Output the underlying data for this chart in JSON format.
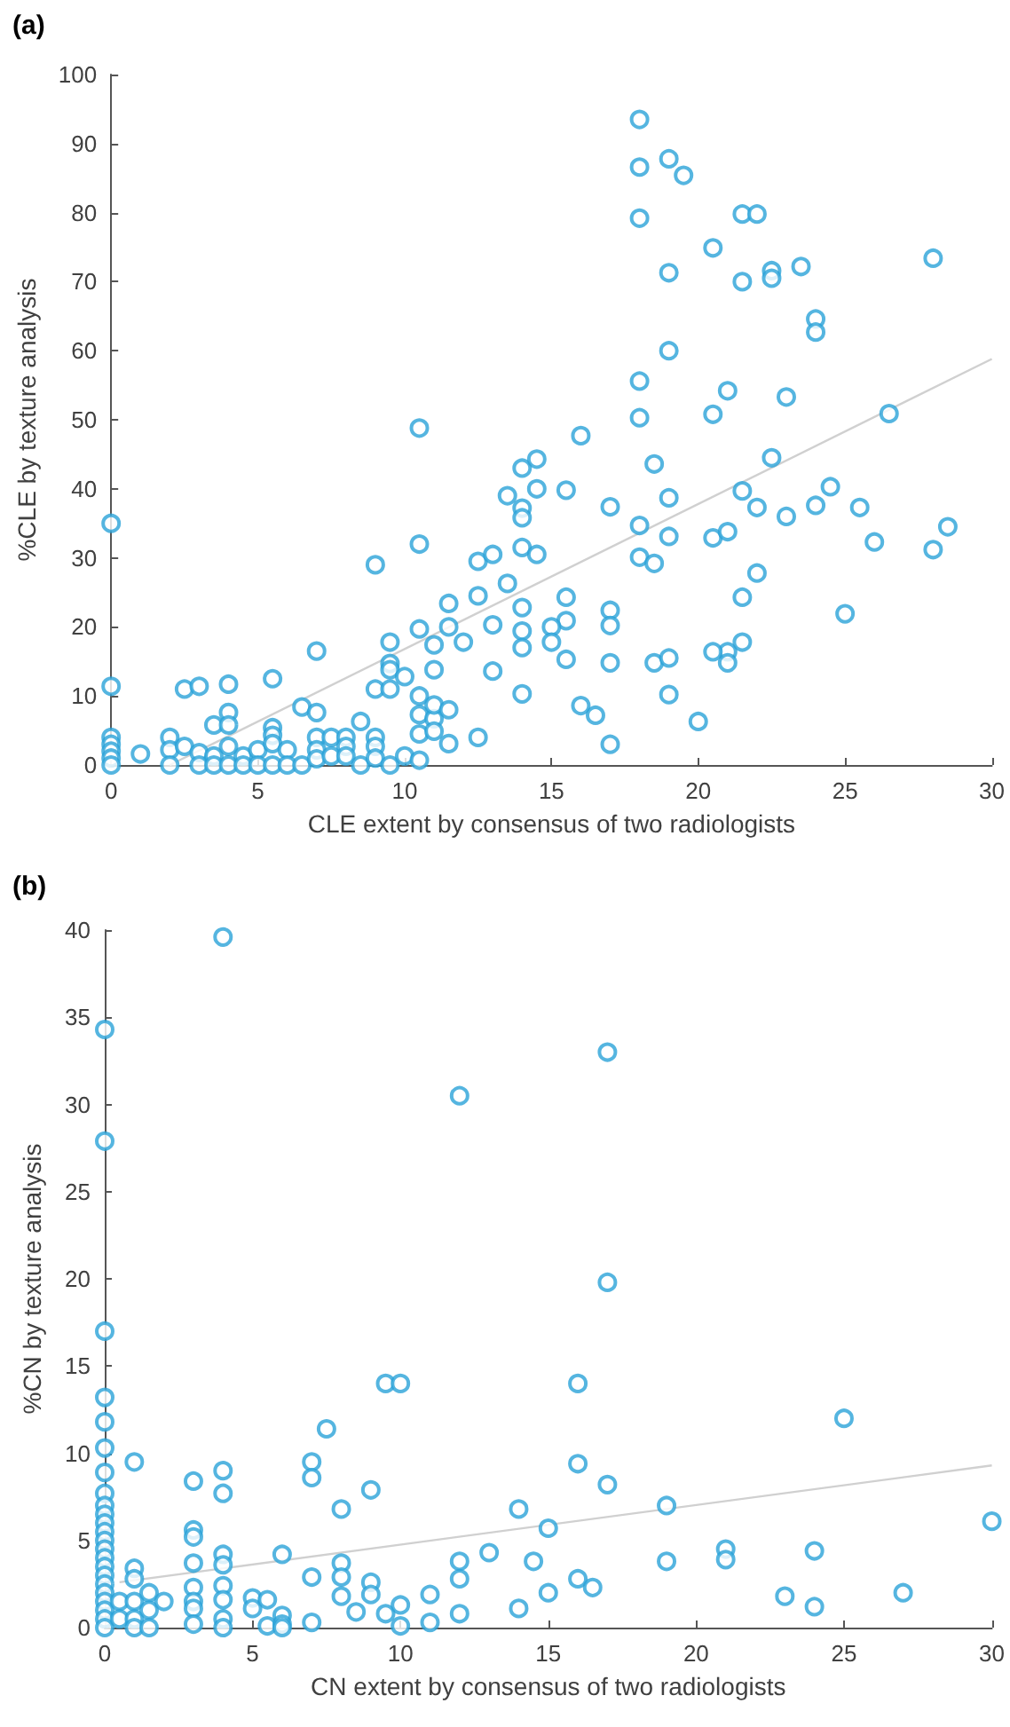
{
  "chart_data": [
    {
      "type": "scatter",
      "title": "(a)",
      "xlabel": "CLE extent by consensus of two radiologists",
      "ylabel": "%CLE by texture analysis",
      "xlim": [
        0,
        30
      ],
      "xticks": [
        0,
        5,
        10,
        15,
        20,
        25,
        30
      ],
      "ylim": [
        0,
        100
      ],
      "yticks": [
        0,
        10,
        20,
        30,
        40,
        50,
        60,
        70,
        80,
        90,
        100
      ],
      "marker": "circle",
      "series": [
        {
          "color": "#2aa3d8",
          "x": [
            0,
            0,
            0,
            0,
            0,
            0,
            0,
            1,
            2,
            2,
            2,
            2.5,
            3,
            2.5,
            3,
            3,
            3.5,
            3.5,
            3.5,
            4,
            4,
            4,
            4,
            4,
            4.5,
            4.5,
            5,
            5,
            5.5,
            5.5,
            5.5,
            5.5,
            5.5,
            6,
            6,
            6.5,
            7,
            7,
            6.5,
            7,
            7,
            7,
            7.5,
            7.5,
            8,
            8,
            8,
            8.5,
            8.5,
            9,
            9,
            9,
            9,
            9,
            9.5,
            9.5,
            9.5,
            9.5,
            9.5,
            10,
            10,
            10.5,
            10.5,
            10.5,
            10.5,
            10.5,
            10.5,
            10.5,
            11,
            11,
            11,
            11,
            11,
            11.5,
            11.5,
            11.5,
            11.5,
            12,
            12.5,
            12.5,
            12.5,
            13,
            13,
            13,
            13.5,
            13.5,
            14,
            14,
            14,
            14,
            14,
            14,
            14,
            14,
            14.5,
            14.5,
            14.5,
            15.5,
            16,
            15.5,
            15.5,
            15,
            15,
            15.5,
            17,
            17,
            17,
            17,
            16,
            16.5,
            17,
            18,
            18,
            18,
            18,
            18,
            18,
            18,
            18.5,
            18.5,
            19,
            19.5,
            19,
            19,
            19,
            19,
            18.5,
            19,
            19,
            20,
            20.5,
            20.5,
            20.5,
            21,
            21,
            21,
            21,
            20.5,
            21.5,
            22,
            21.5,
            21.5,
            22,
            21.5,
            21.5,
            22,
            22.5,
            22.5,
            22.5,
            23,
            23,
            23.5,
            24,
            24,
            24,
            24.5,
            25,
            25.5,
            26,
            26.5,
            28,
            28,
            28.5
          ],
          "values": [
            35,
            11.4,
            4,
            3,
            2,
            1,
            0,
            1.6,
            4,
            2.2,
            0,
            11,
            11.4,
            2.7,
            1.8,
            0,
            5.8,
            1.3,
            0,
            11.7,
            7.6,
            5.8,
            2.7,
            0,
            1.3,
            0,
            2.2,
            0,
            12.5,
            5.4,
            4.3,
            3.1,
            0,
            2.2,
            0,
            8.4,
            7.6,
            16.5,
            0,
            4,
            2.2,
            0.9,
            4,
            1.3,
            4,
            2.7,
            1.3,
            6.3,
            0,
            29,
            11,
            4,
            2.7,
            1,
            17.8,
            14.7,
            13.8,
            11,
            0,
            12.8,
            1.3,
            48.8,
            32,
            19.7,
            10,
            7.3,
            4.5,
            0.7,
            17.4,
            13.8,
            6.7,
            4.9,
            8.7,
            20,
            8,
            3.1,
            23.4,
            17.8,
            29.5,
            24.5,
            4,
            30.5,
            20.3,
            13.6,
            39,
            26.3,
            43,
            37.2,
            35.8,
            31.5,
            22.8,
            19.4,
            17,
            10.3,
            44.3,
            40,
            30.5,
            39.8,
            47.7,
            24.3,
            20.9,
            20,
            17.8,
            15.3,
            37.4,
            22.4,
            20.2,
            14.8,
            8.6,
            7.2,
            3,
            93.5,
            86.6,
            79.2,
            55.6,
            50.3,
            34.7,
            30.1,
            29.2,
            43.6,
            87.8,
            85.4,
            71.3,
            60,
            38.7,
            33.1,
            14.8,
            15.5,
            10.2,
            6.3,
            74.9,
            50.8,
            32.9,
            54.2,
            33.8,
            16.4,
            14.8,
            16.4,
            79.8,
            79.8,
            70,
            39.7,
            37.3,
            24.3,
            17.8,
            27.8,
            71.6,
            70.5,
            44.5,
            53.3,
            36,
            72.2,
            64.6,
            62.7,
            37.6,
            40.3,
            21.9,
            37.3,
            32.3,
            50.9,
            73.4,
            31.2,
            34.5
          ]
        },
        {
          "type": "line",
          "color": "#d0d0d0",
          "marker": "none",
          "x": [
            2,
            30
          ],
          "values": [
            0,
            58.8
          ]
        }
      ]
    },
    {
      "type": "scatter",
      "title": "(b)",
      "xlabel": "CN extent by consensus of two radiologists",
      "ylabel": "%CN by texture analysis",
      "xlim": [
        0,
        30
      ],
      "xticks": [
        0,
        5,
        10,
        15,
        20,
        25,
        30
      ],
      "ylim": [
        0,
        40
      ],
      "yticks": [
        0,
        5,
        10,
        15,
        20,
        25,
        30,
        35,
        40
      ],
      "marker": "circle",
      "series": [
        {
          "color": "#2aa3d8",
          "x": [
            0,
            0,
            0,
            0,
            0,
            0,
            0,
            0,
            0,
            0,
            0,
            0,
            0,
            0,
            0,
            0,
            0,
            0,
            0,
            0,
            0,
            0,
            0,
            0.5,
            0.5,
            1,
            1,
            1,
            1,
            1,
            1,
            1.5,
            1.5,
            1.5,
            2,
            3,
            3,
            3,
            3,
            3,
            3,
            3,
            3,
            4,
            4,
            4,
            4,
            4,
            4,
            4,
            4,
            4,
            5,
            5,
            5.5,
            5.5,
            6,
            6,
            6,
            6,
            7,
            7,
            7,
            7,
            7.5,
            8,
            8,
            8,
            8,
            8.5,
            9,
            9,
            9,
            9.5,
            9.5,
            10,
            10,
            10,
            11,
            11,
            12,
            12,
            12,
            12,
            13,
            14,
            14,
            14.5,
            15,
            15,
            16,
            16,
            16,
            16.5,
            17,
            17,
            17,
            19,
            19,
            21,
            21,
            23,
            24,
            24,
            25,
            27,
            30
          ],
          "values": [
            34.3,
            27.9,
            17,
            13.2,
            11.8,
            10.3,
            8.9,
            7.7,
            7,
            6.5,
            6,
            5.5,
            5,
            4.5,
            4,
            3.5,
            3,
            2.5,
            2,
            1.5,
            1,
            0.5,
            0,
            1.5,
            0.5,
            9.5,
            3.4,
            2.8,
            1.5,
            0.5,
            0,
            2,
            1,
            0,
            1.5,
            8.4,
            5.6,
            5.2,
            3.7,
            2.3,
            1.5,
            1.1,
            0.2,
            39.6,
            9,
            7.7,
            4.2,
            3.6,
            2.4,
            1.6,
            0.5,
            0,
            1.7,
            1.1,
            1.6,
            0.1,
            4.2,
            0.7,
            0.2,
            0,
            9.5,
            8.6,
            2.9,
            0.3,
            11.4,
            6.8,
            3.7,
            2.9,
            1.8,
            0.9,
            7.9,
            2.6,
            1.9,
            14,
            0.8,
            14,
            1.3,
            0.1,
            1.9,
            0.3,
            30.5,
            3.8,
            2.8,
            0.8,
            4.3,
            6.8,
            1.1,
            3.8,
            5.7,
            2,
            14,
            9.4,
            2.8,
            2.3,
            33,
            19.8,
            8.2,
            7,
            3.8,
            4.5,
            3.9,
            1.8,
            4.4,
            1.2,
            12,
            2,
            6.1
          ]
        },
        {
          "type": "line",
          "color": "#d0d0d0",
          "marker": "none",
          "x": [
            0.5,
            30
          ],
          "values": [
            2.6,
            9.3
          ]
        }
      ]
    }
  ]
}
